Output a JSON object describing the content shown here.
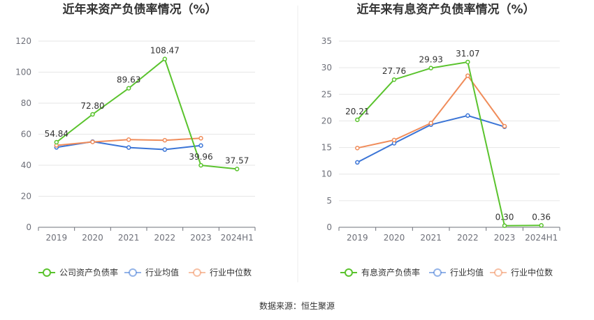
{
  "source_label": "数据来源：恒生聚源",
  "chart_data": [
    {
      "type": "line",
      "title": "近年来资产负债率情况（%）",
      "categories": [
        "2019",
        "2020",
        "2021",
        "2022",
        "2023",
        "2024H1"
      ],
      "ylim": [
        0,
        120
      ],
      "yticks": [
        0,
        20,
        40,
        60,
        80,
        100,
        120
      ],
      "grid": true,
      "legend_position": "bottom",
      "series": [
        {
          "name": "公司资产负债率",
          "color": "#5ac32d",
          "values": [
            54.84,
            72.8,
            89.63,
            108.47,
            39.96,
            37.57
          ],
          "labels": [
            "54.84",
            "72.80",
            "89.63",
            "108.47",
            "39.96",
            "37.57"
          ]
        },
        {
          "name": "行业均值",
          "color": "#3a74d6",
          "values": [
            51.5,
            55.2,
            51.4,
            50.1,
            52.7,
            null
          ]
        },
        {
          "name": "行业中位数",
          "color": "#f08c5a",
          "values": [
            52.8,
            55.0,
            56.5,
            56.1,
            57.4,
            null
          ]
        }
      ]
    },
    {
      "type": "line",
      "title": "近年来有息资产负债率情况（%）",
      "categories": [
        "2019",
        "2020",
        "2021",
        "2022",
        "2023",
        "2024H1"
      ],
      "ylim": [
        0,
        35
      ],
      "yticks": [
        0,
        5,
        10,
        15,
        20,
        25,
        30,
        35
      ],
      "grid": true,
      "legend_position": "bottom",
      "series": [
        {
          "name": "有息资产负债率",
          "color": "#5ac32d",
          "values": [
            20.21,
            27.76,
            29.93,
            31.07,
            0.3,
            0.36
          ],
          "labels": [
            "20.21",
            "27.76",
            "29.93",
            "31.07",
            "0.30",
            "0.36"
          ]
        },
        {
          "name": "行业均值",
          "color": "#3a74d6",
          "values": [
            12.2,
            15.8,
            19.3,
            21.0,
            18.9,
            null
          ]
        },
        {
          "name": "行业中位数",
          "color": "#f08c5a",
          "values": [
            14.9,
            16.4,
            19.6,
            28.5,
            19.0,
            null
          ]
        }
      ]
    }
  ]
}
